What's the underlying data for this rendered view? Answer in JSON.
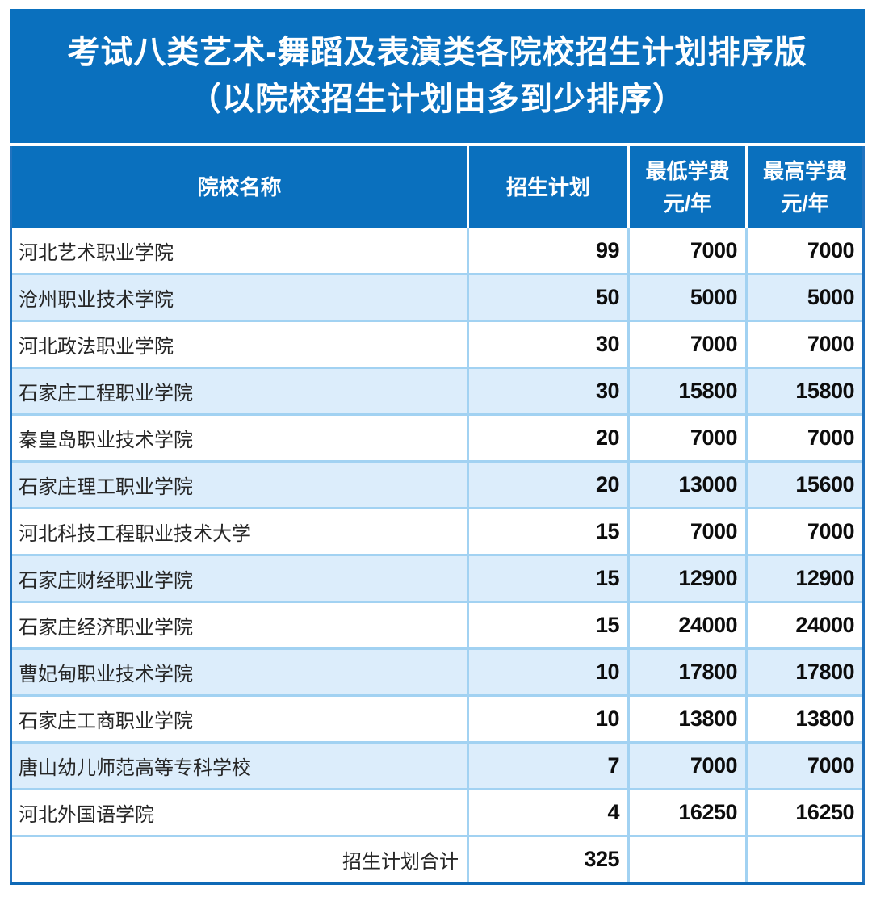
{
  "banner": {
    "title_line1": "考试八类艺术-舞蹈及表演类各院校招生计划排序版",
    "title_line2": "（以院校招生计划由多到少排序）"
  },
  "table": {
    "columns": {
      "school": "院校名称",
      "plan": "招生计划",
      "min_fee": "最低学费",
      "max_fee": "最高学费",
      "fee_unit": "元/年"
    },
    "rows": [
      {
        "school": "河北艺术职业学院",
        "plan": "99",
        "min_fee": "7000",
        "max_fee": "7000"
      },
      {
        "school": "沧州职业技术学院",
        "plan": "50",
        "min_fee": "5000",
        "max_fee": "5000"
      },
      {
        "school": "河北政法职业学院",
        "plan": "30",
        "min_fee": "7000",
        "max_fee": "7000"
      },
      {
        "school": "石家庄工程职业学院",
        "plan": "30",
        "min_fee": "15800",
        "max_fee": "15800"
      },
      {
        "school": "秦皇岛职业技术学院",
        "plan": "20",
        "min_fee": "7000",
        "max_fee": "7000"
      },
      {
        "school": "石家庄理工职业学院",
        "plan": "20",
        "min_fee": "13000",
        "max_fee": "15600"
      },
      {
        "school": "河北科技工程职业技术大学",
        "plan": "15",
        "min_fee": "7000",
        "max_fee": "7000"
      },
      {
        "school": "石家庄财经职业学院",
        "plan": "15",
        "min_fee": "12900",
        "max_fee": "12900"
      },
      {
        "school": "石家庄经济职业学院",
        "plan": "15",
        "min_fee": "24000",
        "max_fee": "24000"
      },
      {
        "school": "曹妃甸职业技术学院",
        "plan": "10",
        "min_fee": "17800",
        "max_fee": "17800"
      },
      {
        "school": "石家庄工商职业学院",
        "plan": "10",
        "min_fee": "13800",
        "max_fee": "13800"
      },
      {
        "school": "唐山幼儿师范高等专科学校",
        "plan": "7",
        "min_fee": "7000",
        "max_fee": "7000"
      },
      {
        "school": "河北外国语学院",
        "plan": "4",
        "min_fee": "16250",
        "max_fee": "16250"
      }
    ],
    "total": {
      "label": "招生计划合计",
      "plan": "325",
      "min_fee": "",
      "max_fee": ""
    }
  },
  "colors": {
    "header_blue": "#0A70BE",
    "stripe_blue": "#DCEDFB",
    "grid_line": "#A2D2F2",
    "outer_border": "#2173BF",
    "outer_border_bottom": "#0E69B6",
    "header_text": "#FFFFFF",
    "name_text": "#262626",
    "number_text": "#0D0D0D"
  }
}
